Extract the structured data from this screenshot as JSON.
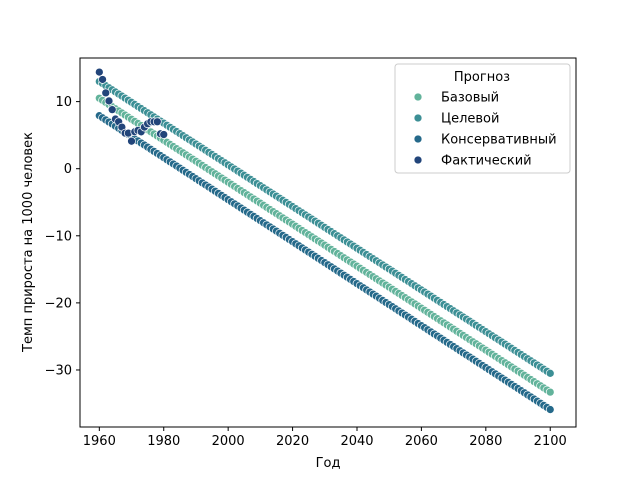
{
  "chart_data": {
    "type": "scatter",
    "xlabel": "Год",
    "ylabel": "Темп прироста на 1000 человек",
    "xlim": [
      1954,
      2108
    ],
    "ylim": [
      -38.5,
      16.5
    ],
    "xticks": [
      1960,
      1980,
      2000,
      2020,
      2040,
      2060,
      2080,
      2100
    ],
    "yticks": [
      -30,
      -20,
      -10,
      0,
      10
    ],
    "grid": false,
    "legend": {
      "title": "Прогноз",
      "placement": "top-right"
    },
    "series": [
      {
        "name": "Базовый",
        "color": "#62b39b",
        "line": {
          "x_start": 1960,
          "y_start": 10.5,
          "x_end": 2100,
          "y_end": -33.3,
          "step": 1
        }
      },
      {
        "name": "Целевой",
        "color": "#3c8f95",
        "line": {
          "x_start": 1960,
          "y_start": 13.0,
          "x_end": 2100,
          "y_end": -30.5,
          "step": 1
        }
      },
      {
        "name": "Консервативный",
        "color": "#25698a",
        "line": {
          "x_start": 1960,
          "y_start": 7.9,
          "x_end": 2100,
          "y_end": -35.9,
          "step": 1
        }
      },
      {
        "name": "Фактический",
        "color": "#22457a",
        "x": [
          1960,
          1961,
          1962,
          1963,
          1964,
          1965,
          1966,
          1967,
          1968,
          1969,
          1970,
          1971,
          1972,
          1973,
          1974,
          1975,
          1976,
          1977,
          1978,
          1979,
          1980
        ],
        "y": [
          14.4,
          13.3,
          11.3,
          10.1,
          8.8,
          7.4,
          7.0,
          6.2,
          5.3,
          5.3,
          4.1,
          5.5,
          5.7,
          5.5,
          6.2,
          6.7,
          7.0,
          7.0,
          7.0,
          5.2,
          5.1
        ]
      }
    ]
  }
}
